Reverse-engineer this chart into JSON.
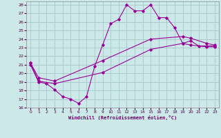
{
  "xlabel": "Windchill (Refroidissement éolien,°C)",
  "xlim": [
    -0.5,
    23.5
  ],
  "ylim": [
    16,
    28.4
  ],
  "xticks": [
    0,
    1,
    2,
    3,
    4,
    5,
    6,
    7,
    8,
    9,
    10,
    11,
    12,
    13,
    14,
    15,
    16,
    17,
    18,
    19,
    20,
    21,
    22,
    23
  ],
  "yticks": [
    16,
    17,
    18,
    19,
    20,
    21,
    22,
    23,
    24,
    25,
    26,
    27,
    28
  ],
  "bg_color": "#cce8e8",
  "grid_color": "#aacccc",
  "line_color": "#990099",
  "line1_x": [
    0,
    1,
    2,
    3,
    4,
    5,
    6,
    7,
    8,
    9,
    10,
    11,
    12,
    13,
    14,
    15,
    16,
    17,
    18,
    19,
    20,
    21,
    22,
    23
  ],
  "line1_y": [
    21.0,
    19.0,
    18.8,
    18.1,
    17.3,
    17.0,
    16.5,
    17.3,
    20.8,
    23.3,
    25.8,
    26.3,
    28.0,
    27.3,
    27.3,
    28.0,
    26.5,
    26.5,
    25.3,
    23.5,
    23.8,
    23.2,
    23.2,
    23.2
  ],
  "line2_x": [
    0,
    1,
    3,
    9,
    15,
    19,
    20,
    22,
    23
  ],
  "line2_y": [
    21.2,
    19.5,
    19.1,
    21.5,
    24.0,
    24.3,
    24.1,
    23.5,
    23.3
  ],
  "line3_x": [
    0,
    1,
    3,
    9,
    15,
    19,
    20,
    22,
    23
  ],
  "line3_y": [
    21.2,
    19.1,
    18.8,
    20.1,
    22.8,
    23.5,
    23.3,
    23.1,
    23.1
  ]
}
